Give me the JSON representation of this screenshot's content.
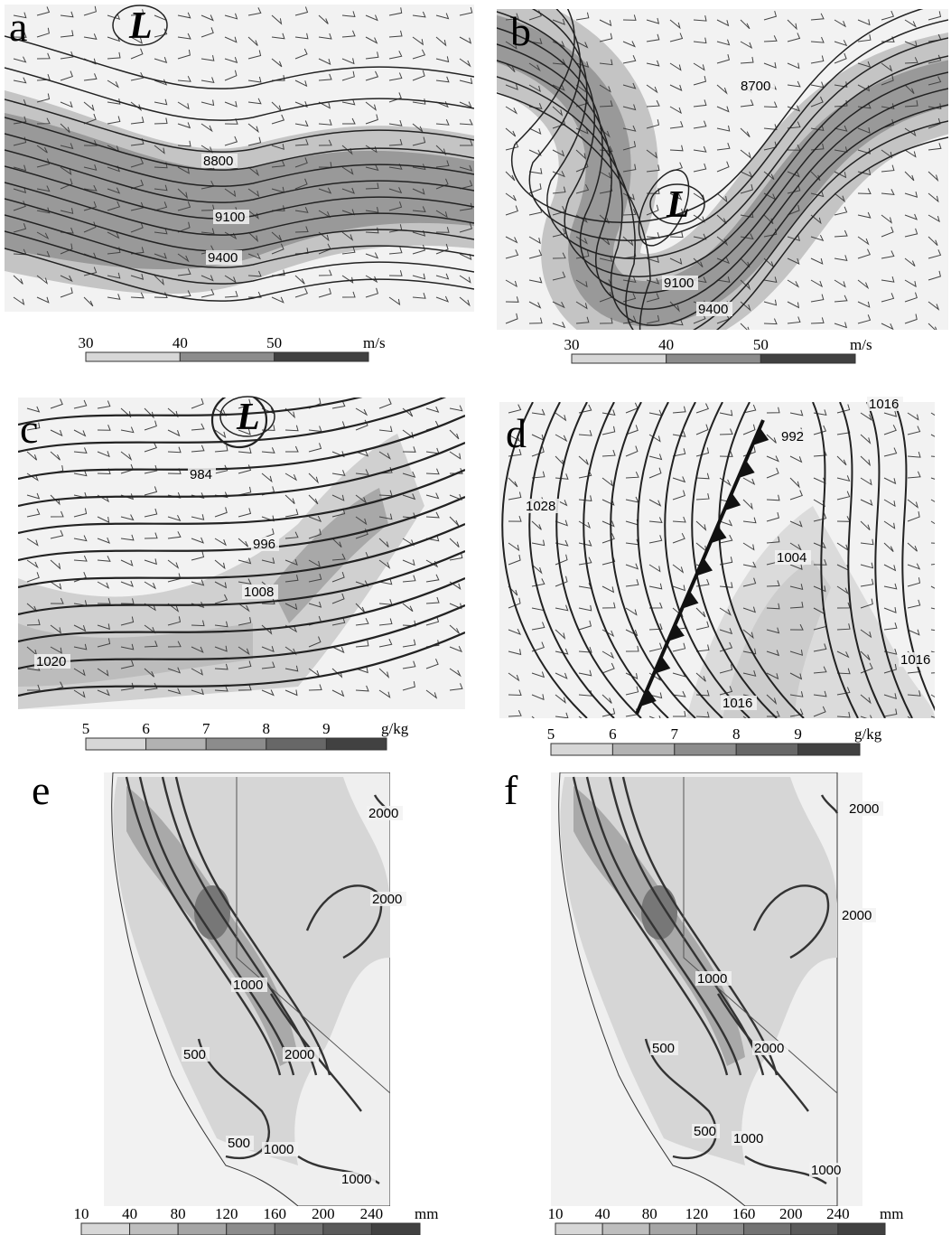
{
  "panels": [
    {
      "label": "a",
      "low_marker": "L",
      "contour_labels": [
        8800,
        9100,
        9400
      ],
      "colorbar": {
        "ticks": [
          30,
          40,
          50
        ],
        "unit": "m/s"
      }
    },
    {
      "label": "b",
      "low_marker": "L",
      "contour_labels": [
        8700,
        9100,
        9400
      ],
      "colorbar": {
        "ticks": [
          30,
          40,
          50
        ],
        "unit": "m/s"
      }
    },
    {
      "label": "c",
      "low_marker": "L",
      "contour_labels": [
        984,
        996,
        1008,
        1020
      ],
      "colorbar": {
        "ticks": [
          5,
          6,
          7,
          8,
          9
        ],
        "unit": "g/kg"
      }
    },
    {
      "label": "d",
      "contour_labels": [
        1028,
        992,
        1004,
        1016,
        1016,
        1016
      ],
      "colorbar": {
        "ticks": [
          5,
          6,
          7,
          8,
          9
        ],
        "unit": "g/kg"
      }
    },
    {
      "label": "e",
      "contour_labels": [
        2000,
        2000,
        1000,
        500,
        2000,
        500,
        1000,
        1000
      ],
      "colorbar": {
        "ticks": [
          10,
          40,
          80,
          120,
          160,
          200,
          240
        ],
        "unit": "mm"
      }
    },
    {
      "label": "f",
      "contour_labels": [
        2000,
        2000,
        1000,
        500,
        2000,
        500,
        1000,
        1000
      ],
      "colorbar": {
        "ticks": [
          10,
          40,
          80,
          120,
          160,
          200,
          240
        ],
        "unit": "mm"
      }
    }
  ]
}
